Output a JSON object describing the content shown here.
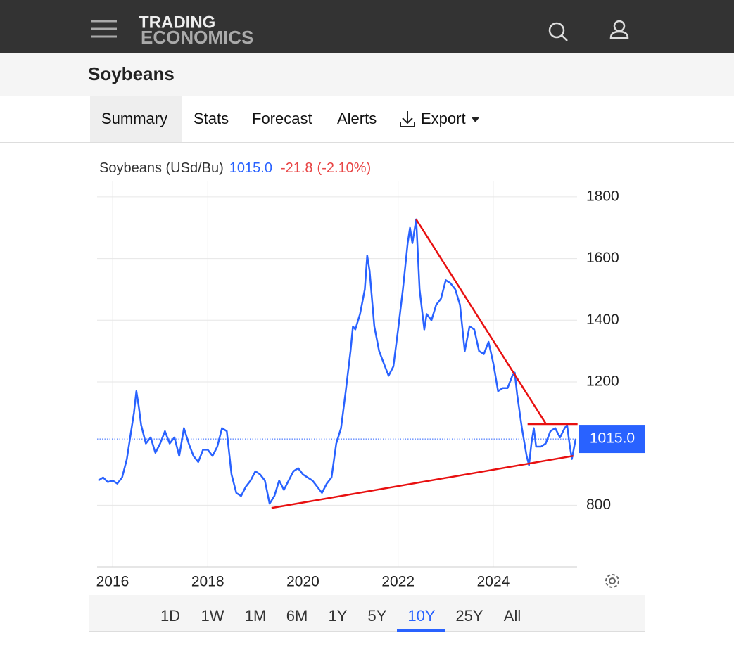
{
  "header": {
    "logo_top": "TRADING",
    "logo_bottom": "ECONOMICS"
  },
  "page_title": "Soybeans",
  "tabs": [
    "Summary",
    "Stats",
    "Forecast",
    "Alerts",
    "Export"
  ],
  "active_tab": 0,
  "ranges": [
    "1D",
    "1W",
    "1M",
    "6M",
    "1Y",
    "5Y",
    "10Y",
    "25Y",
    "All"
  ],
  "active_range": 6,
  "chart_data": {
    "type": "line",
    "quote": {
      "value": 1015.0,
      "label": "1015.0"
    },
    "change": -21.8,
    "change_pct": {
      "value": -2.1,
      "label": "(-2.10%)"
    },
    "x": [
      2015.7,
      2015.8,
      2015.9,
      2016.0,
      2016.1,
      2016.2,
      2016.3,
      2016.4,
      2016.45,
      2016.5,
      2016.55,
      2016.6,
      2016.7,
      2016.8,
      2016.9,
      2017.0,
      2017.1,
      2017.2,
      2017.3,
      2017.4,
      2017.5,
      2017.6,
      2017.7,
      2017.8,
      2017.9,
      2018.0,
      2018.1,
      2018.2,
      2018.3,
      2018.4,
      2018.5,
      2018.6,
      2018.7,
      2018.8,
      2018.9,
      2019.0,
      2019.1,
      2019.2,
      2019.3,
      2019.4,
      2019.5,
      2019.6,
      2019.7,
      2019.8,
      2019.9,
      2020.0,
      2020.1,
      2020.2,
      2020.3,
      2020.4,
      2020.5,
      2020.6,
      2020.7,
      2020.8,
      2020.9,
      2021.0,
      2021.05,
      2021.1,
      2021.2,
      2021.3,
      2021.35,
      2021.4,
      2021.5,
      2021.6,
      2021.7,
      2021.8,
      2021.9,
      2022.0,
      2022.1,
      2022.2,
      2022.25,
      2022.3,
      2022.38,
      2022.45,
      2022.55,
      2022.6,
      2022.7,
      2022.8,
      2022.9,
      2023.0,
      2023.1,
      2023.2,
      2023.3,
      2023.4,
      2023.5,
      2023.6,
      2023.7,
      2023.8,
      2023.9,
      2024.0,
      2024.1,
      2024.2,
      2024.3,
      2024.4,
      2024.45,
      2024.5,
      2024.6,
      2024.7,
      2024.75,
      2024.8,
      2024.85,
      2024.9,
      2025.0,
      2025.1,
      2025.2,
      2025.3,
      2025.4,
      2025.5,
      2025.55,
      2025.6,
      2025.65,
      2025.73
    ],
    "series": [
      {
        "name": "Soybeans (USd/Bu)",
        "color": "#2962ff",
        "values": [
          880,
          890,
          875,
          880,
          870,
          890,
          950,
          1050,
          1100,
          1170,
          1120,
          1060,
          1000,
          1020,
          970,
          1000,
          1040,
          1000,
          1020,
          960,
          1050,
          1000,
          960,
          940,
          980,
          980,
          960,
          990,
          1050,
          1040,
          900,
          840,
          830,
          860,
          880,
          910,
          900,
          880,
          805,
          830,
          880,
          850,
          880,
          910,
          920,
          900,
          890,
          880,
          860,
          840,
          870,
          890,
          1000,
          1050,
          1170,
          1300,
          1380,
          1370,
          1420,
          1500,
          1610,
          1560,
          1380,
          1300,
          1260,
          1220,
          1250,
          1370,
          1500,
          1650,
          1700,
          1650,
          1727,
          1500,
          1370,
          1420,
          1400,
          1450,
          1470,
          1530,
          1520,
          1500,
          1450,
          1300,
          1380,
          1370,
          1300,
          1290,
          1330,
          1260,
          1170,
          1180,
          1180,
          1220,
          1230,
          1160,
          1050,
          960,
          930,
          1000,
          1050,
          990,
          990,
          1000,
          1040,
          1050,
          1020,
          1050,
          1060,
          1000,
          950,
          1015
        ]
      }
    ],
    "trend_lines": [
      {
        "color": "#e81010",
        "x": [
          2022.38,
          2025.11
        ],
        "values": [
          1727,
          1063
        ]
      },
      {
        "color": "#e81010",
        "x": [
          2024.72,
          2025.77
        ],
        "values": [
          1063,
          1063
        ]
      },
      {
        "color": "#e81010",
        "x": [
          2019.34,
          2025.68
        ],
        "values": [
          791,
          960
        ]
      }
    ],
    "xlim": [
      2015.675,
      2025.76
    ],
    "xticks": [
      2016,
      2018,
      2020,
      2022,
      2024
    ],
    "ylim": [
      600,
      1850
    ],
    "yticks": [
      800,
      1200,
      1400,
      1600,
      1800
    ],
    "grid": true
  }
}
